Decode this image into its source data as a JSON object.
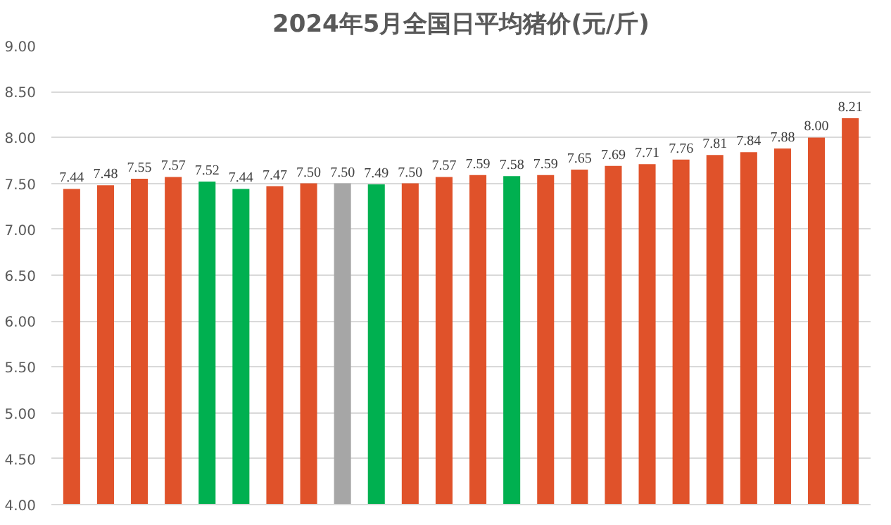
{
  "chart_data": {
    "type": "bar",
    "title": "2024年5月全国日平均猪价(元/斤)",
    "categories": [
      null,
      null,
      null,
      null,
      null,
      null,
      null,
      null,
      null,
      null,
      null,
      null,
      null,
      null,
      null,
      null,
      null,
      null,
      null,
      null,
      null,
      null,
      null,
      null
    ],
    "values": [
      7.44,
      7.48,
      7.55,
      7.57,
      7.52,
      7.44,
      7.47,
      7.5,
      7.5,
      7.49,
      7.5,
      7.57,
      7.59,
      7.58,
      7.59,
      7.65,
      7.69,
      7.71,
      7.76,
      7.81,
      7.84,
      7.88,
      8.0,
      8.21
    ],
    "value_labels": [
      "7.44",
      "7.48",
      "7.55",
      "7.57",
      "7.52",
      "7.44",
      "7.47",
      "7.50",
      "7.50",
      "7.49",
      "7.50",
      "7.57",
      "7.59",
      "7.58",
      "7.59",
      "7.65",
      "7.69",
      "7.71",
      "7.76",
      "7.81",
      "7.84",
      "7.88",
      "8.00",
      "8.21"
    ],
    "colors": [
      "#e0522a",
      "#e0522a",
      "#e0522a",
      "#e0522a",
      "#00b050",
      "#00b050",
      "#e0522a",
      "#e0522a",
      "#a6a6a6",
      "#00b050",
      "#e0522a",
      "#e0522a",
      "#e0522a",
      "#00b050",
      "#e0522a",
      "#e0522a",
      "#e0522a",
      "#e0522a",
      "#e0522a",
      "#e0522a",
      "#e0522a",
      "#e0522a",
      "#e0522a",
      "#e0522a"
    ],
    "ylim": [
      4,
      9
    ],
    "yticks": [
      {
        "value": 4,
        "label": "4.00"
      },
      {
        "value": 4.5,
        "label": "4.50"
      },
      {
        "value": 5,
        "label": "5.00"
      },
      {
        "value": 5.5,
        "label": "5.50"
      },
      {
        "value": 6,
        "label": "6.00"
      },
      {
        "value": 6.5,
        "label": "6.50"
      },
      {
        "value": 7,
        "label": "7.00"
      },
      {
        "value": 7.5,
        "label": "7.50"
      },
      {
        "value": 8,
        "label": "8.00"
      },
      {
        "value": 8.5,
        "label": "8.50"
      },
      {
        "value": 9,
        "label": "9.00"
      }
    ],
    "grid": "y",
    "tick_labels": "y"
  }
}
